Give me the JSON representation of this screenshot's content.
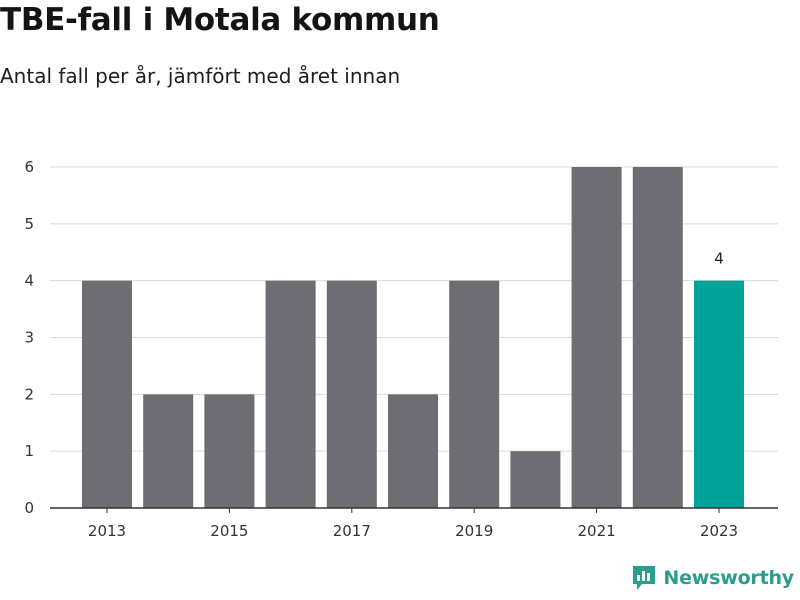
{
  "header": {
    "title": "TBE-fall i Motala kommun",
    "subtitle": "Antal fall per år, jämfört med året innan"
  },
  "brand": {
    "name": "Newsworthy",
    "icon": "newsworthy-logo-icon",
    "color": "#2a9d8f"
  },
  "colors": {
    "bar": "#6e6d73",
    "highlight": "#00a39a",
    "grid": "#d9d9d9",
    "axis": "#333333"
  },
  "chart_data": {
    "type": "bar",
    "categories": [
      "2013",
      "2014",
      "2015",
      "2016",
      "2017",
      "2018",
      "2019",
      "2020",
      "2021",
      "2022",
      "2023"
    ],
    "values": [
      4,
      2,
      2,
      4,
      4,
      2,
      4,
      1,
      6,
      6,
      4
    ],
    "highlight_index": 10,
    "data_labels": [
      {
        "index": 10,
        "text": "4"
      }
    ],
    "x_tick_labels": [
      "2013",
      "2015",
      "2017",
      "2019",
      "2021",
      "2023"
    ],
    "y_ticks": [
      0,
      1,
      2,
      3,
      4,
      5,
      6
    ],
    "ylim": [
      0,
      6
    ],
    "grid": true,
    "legend": "none",
    "title": "TBE-fall i Motala kommun",
    "subtitle": "Antal fall per år, jämfört med året innan",
    "xlabel": "",
    "ylabel": ""
  }
}
